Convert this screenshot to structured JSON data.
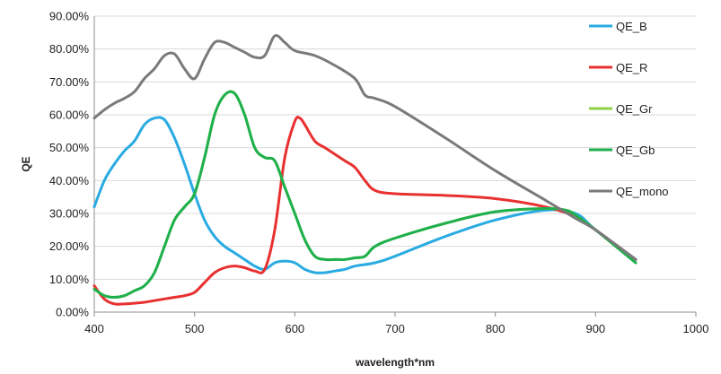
{
  "chart_data": {
    "type": "line",
    "title": "",
    "xlabel": "wavelength*nm",
    "ylabel": "QE",
    "xlim": [
      400,
      1000
    ],
    "ylim": [
      0,
      90
    ],
    "x_ticks": [
      400,
      500,
      600,
      700,
      800,
      900,
      1000
    ],
    "y_ticks": [
      0,
      10,
      20,
      30,
      40,
      50,
      60,
      70,
      80,
      90
    ],
    "y_tick_labels": [
      "0.00%",
      "10.00%",
      "20.00%",
      "30.00%",
      "40.00%",
      "50.00%",
      "60.00%",
      "70.00%",
      "80.00%",
      "90.00%"
    ],
    "grid": "horizontal",
    "legend_position": "right",
    "series": [
      {
        "name": "QE_B",
        "color": "#29abe2",
        "x": [
          400,
          410,
          420,
          430,
          440,
          450,
          460,
          470,
          480,
          490,
          500,
          510,
          520,
          530,
          540,
          550,
          560,
          570,
          580,
          590,
          600,
          610,
          620,
          630,
          640,
          650,
          660,
          680,
          700,
          750,
          800,
          850,
          880,
          900,
          940
        ],
        "y": [
          32,
          40,
          45,
          49,
          52,
          57,
          59,
          58.5,
          53,
          45,
          36,
          28,
          23,
          20,
          18,
          16,
          14,
          13,
          15,
          15.5,
          15,
          13,
          12,
          12,
          12.5,
          13,
          14,
          15,
          17,
          23,
          28,
          31,
          30,
          25,
          16
        ]
      },
      {
        "name": "QE_R",
        "color": "#e83030",
        "x": [
          400,
          410,
          420,
          430,
          440,
          450,
          460,
          470,
          480,
          490,
          500,
          510,
          520,
          530,
          540,
          550,
          560,
          570,
          580,
          590,
          600,
          605,
          610,
          620,
          630,
          640,
          650,
          660,
          670,
          680,
          700,
          750,
          800,
          850,
          880,
          900,
          940
        ],
        "y": [
          8,
          4,
          2.5,
          2.5,
          2.7,
          3,
          3.5,
          4,
          4.5,
          5,
          6,
          9,
          12,
          13.5,
          14,
          13.5,
          12.5,
          13,
          25,
          47,
          58,
          59,
          57,
          52,
          50,
          48,
          46,
          44,
          40,
          37,
          36,
          35.5,
          34.5,
          32,
          29,
          25,
          16
        ]
      },
      {
        "name": "QE_Gr",
        "color": "#8ed046",
        "x": [
          400,
          410,
          420,
          430,
          440,
          450,
          460,
          470,
          480,
          490,
          500,
          510,
          520,
          530,
          540,
          550,
          560,
          570,
          580,
          590,
          600,
          610,
          620,
          630,
          640,
          650,
          660,
          670,
          680,
          700,
          750,
          800,
          850,
          870,
          880,
          900,
          940
        ],
        "y": [
          7,
          5,
          4.5,
          5,
          6.5,
          8,
          12,
          20,
          28,
          32,
          36,
          47,
          60,
          66,
          66.5,
          60,
          50,
          47,
          46,
          38,
          30,
          22,
          17,
          16,
          16,
          16,
          16.5,
          17,
          20,
          22.5,
          27,
          30.5,
          31.5,
          31,
          29.5,
          25,
          15
        ]
      },
      {
        "name": "QE_Gb",
        "color": "#1fb04e",
        "x": [
          400,
          410,
          420,
          430,
          440,
          450,
          460,
          470,
          480,
          490,
          500,
          510,
          520,
          530,
          540,
          550,
          560,
          570,
          580,
          590,
          600,
          610,
          620,
          630,
          640,
          650,
          660,
          670,
          680,
          700,
          750,
          800,
          850,
          870,
          880,
          900,
          940
        ],
        "y": [
          7,
          5,
          4.5,
          5,
          6.5,
          8,
          12,
          20,
          28,
          32,
          36,
          47,
          60,
          66,
          66.5,
          60,
          50,
          47,
          46,
          38,
          30,
          22,
          17,
          16,
          16,
          16,
          16.5,
          17,
          20,
          22.5,
          27,
          30.5,
          31.5,
          31,
          29.5,
          25,
          15
        ]
      },
      {
        "name": "QE_mono",
        "color": "#7a7a7a",
        "x": [
          400,
          410,
          420,
          430,
          440,
          450,
          460,
          470,
          480,
          490,
          500,
          510,
          520,
          530,
          540,
          550,
          560,
          570,
          580,
          590,
          600,
          620,
          640,
          660,
          670,
          680,
          700,
          750,
          800,
          850,
          880,
          900,
          940
        ],
        "y": [
          59,
          61.5,
          63.5,
          65,
          67,
          71,
          74,
          78,
          78.5,
          74,
          71,
          77,
          82,
          82,
          80.5,
          79,
          77.5,
          78,
          84,
          82,
          79.5,
          78,
          75,
          71,
          66,
          65,
          62.5,
          53,
          43,
          34,
          28.5,
          25,
          16
        ]
      }
    ]
  }
}
